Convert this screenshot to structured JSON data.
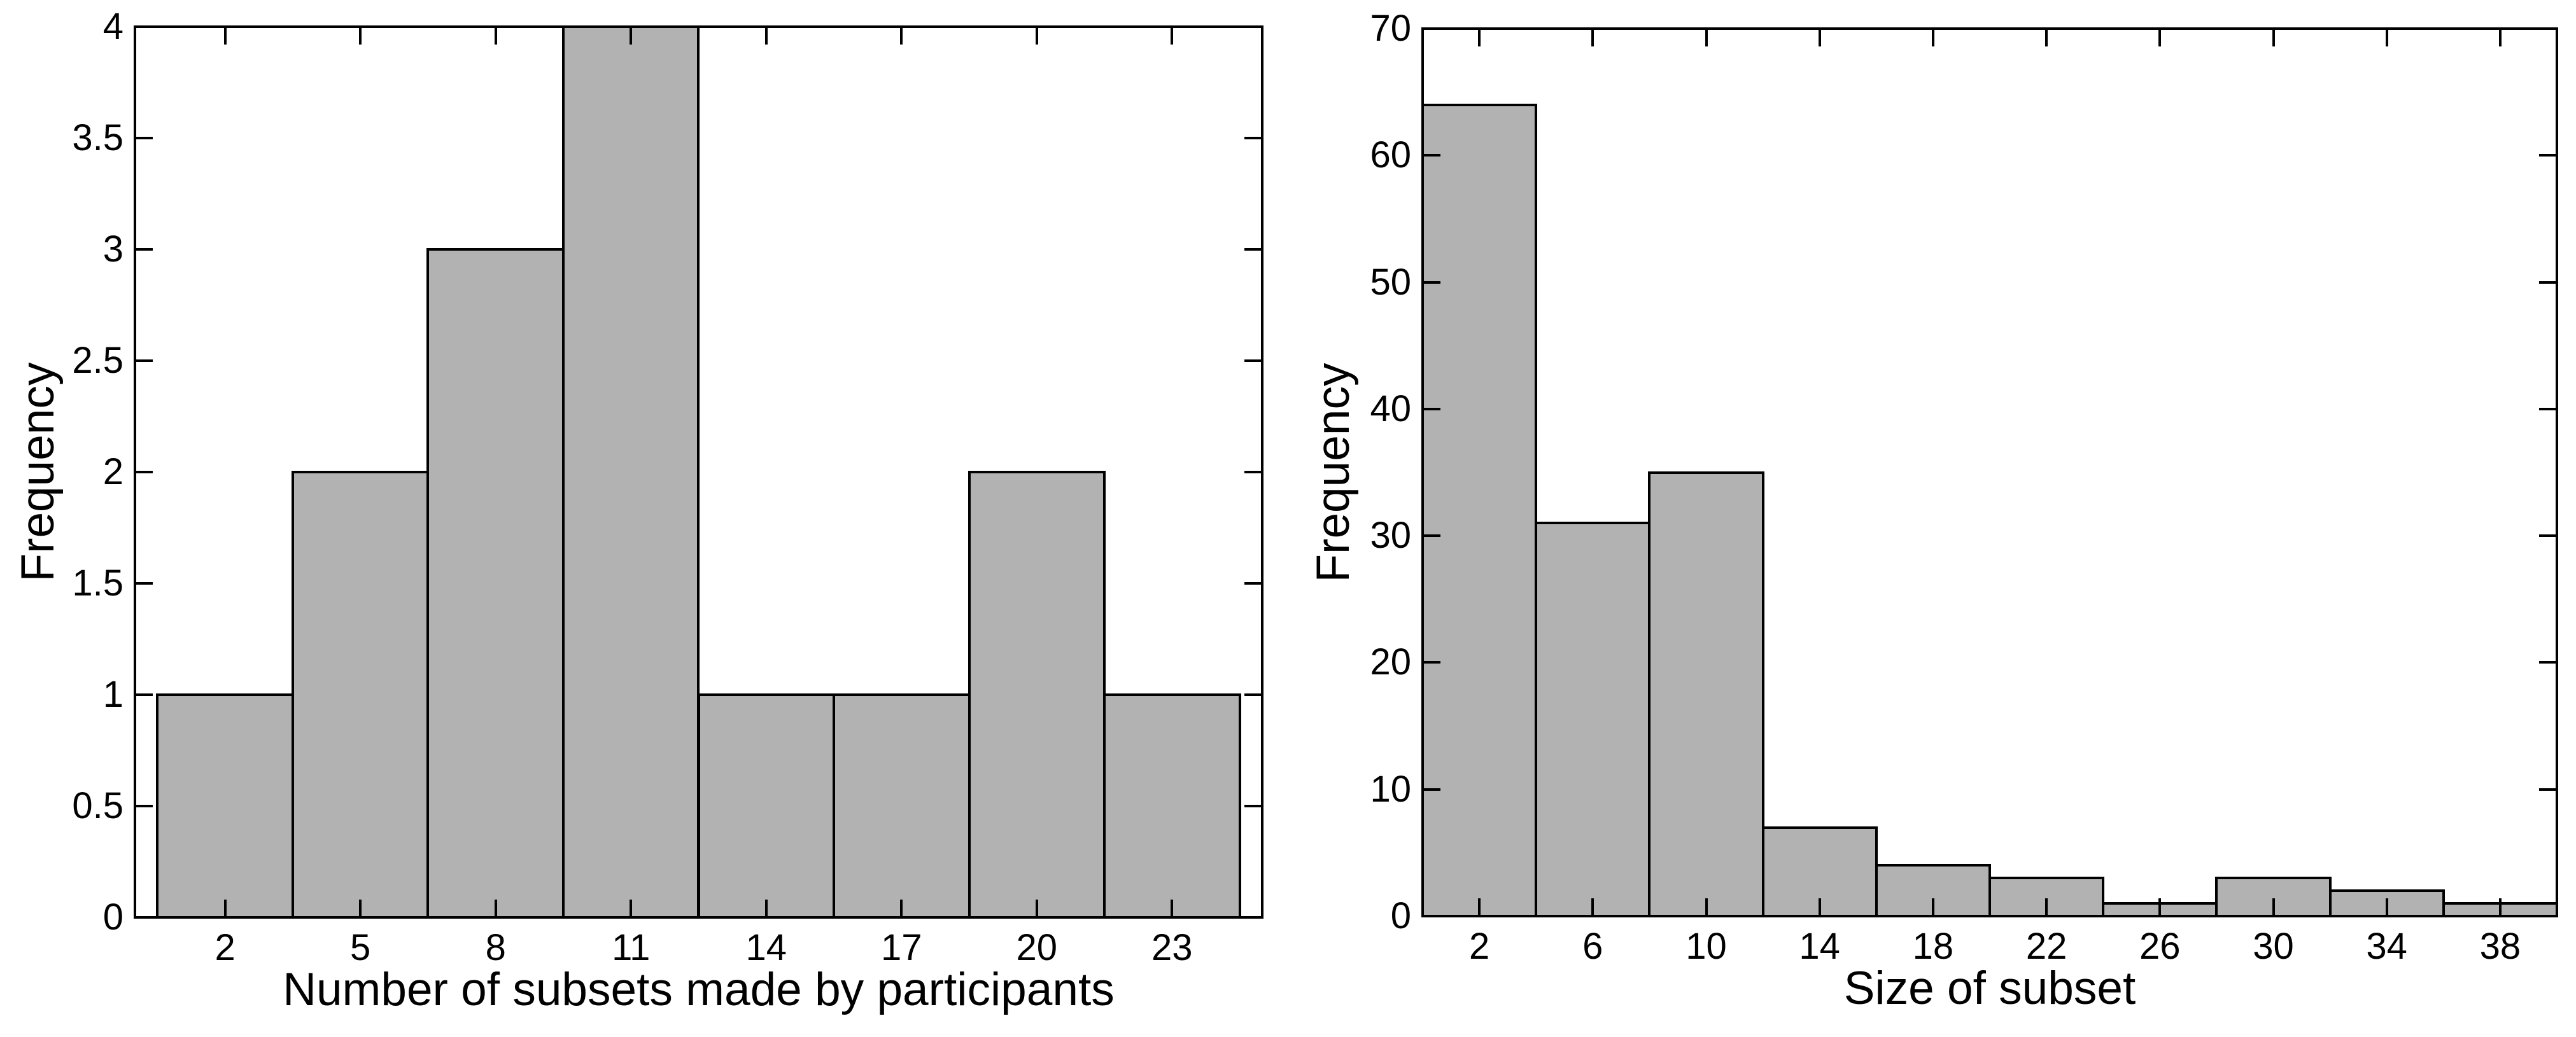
{
  "figure": {
    "background": "#ffffff",
    "bar_fill": "#b2b2b2",
    "bar_edge": "#000000",
    "axis_color": "#000000",
    "text_color": "#000000"
  },
  "chart_data": [
    {
      "type": "bar",
      "subtype": "histogram",
      "title": "",
      "xlabel": "Number of subsets made by participants",
      "ylabel": "Frequency",
      "categories": [
        "2",
        "5",
        "8",
        "11",
        "14",
        "17",
        "20",
        "23"
      ],
      "values": [
        1,
        2,
        3,
        4,
        1,
        1,
        2,
        1
      ],
      "bin_width": 3,
      "first_bin_left": 0.5,
      "xlim": [
        0,
        25
      ],
      "xtick_values": [
        2,
        5,
        8,
        11,
        14,
        17,
        20,
        23
      ],
      "ylim": [
        0,
        4
      ],
      "ytick_values": [
        0,
        0.5,
        1,
        1.5,
        2,
        2.5,
        3,
        3.5,
        4
      ],
      "ytick_labels": [
        "0",
        "0.5",
        "1",
        "1.5",
        "2",
        "2.5",
        "3",
        "3.5",
        "4"
      ],
      "grid": false,
      "legend": null
    },
    {
      "type": "bar",
      "subtype": "histogram",
      "title": "",
      "xlabel": "Size of subset",
      "ylabel": "Frequency",
      "categories": [
        "2",
        "6",
        "10",
        "14",
        "18",
        "22",
        "26",
        "30",
        "34",
        "38"
      ],
      "values": [
        64,
        31,
        35,
        7,
        4,
        3,
        1,
        3,
        2,
        1
      ],
      "bin_width": 4,
      "first_bin_left": 0,
      "xlim": [
        0,
        40
      ],
      "xtick_values": [
        2,
        6,
        10,
        14,
        18,
        22,
        26,
        30,
        34,
        38
      ],
      "ylim": [
        0,
        70
      ],
      "ytick_values": [
        0,
        10,
        20,
        30,
        40,
        50,
        60,
        70
      ],
      "ytick_labels": [
        "0",
        "10",
        "20",
        "30",
        "40",
        "50",
        "60",
        "70"
      ],
      "grid": false,
      "legend": null
    }
  ]
}
